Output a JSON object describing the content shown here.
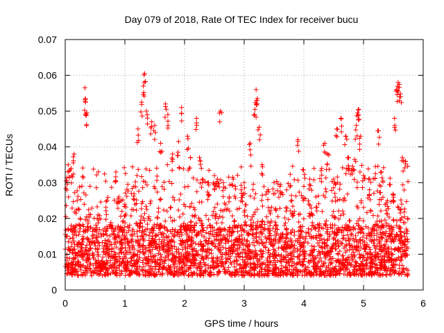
{
  "chart_data": {
    "type": "scatter",
    "title": "Day 079 of 2018, Rate Of TEC Index for receiver bucu",
    "xlabel": "GPS time / hours",
    "ylabel": "ROTI / TECUs",
    "xlim": [
      0,
      6
    ],
    "ylim": [
      0,
      0.07
    ],
    "xticks": [
      0,
      1,
      2,
      3,
      4,
      5,
      6
    ],
    "xtick_labels": [
      "0",
      "1",
      "2",
      "3",
      "4",
      "5",
      "6"
    ],
    "yticks": [
      0,
      0.01,
      0.02,
      0.03,
      0.04,
      0.05,
      0.06,
      0.07
    ],
    "ytick_labels": [
      "0",
      "0.01",
      "0.02",
      "0.03",
      "0.04",
      "0.05",
      "0.06",
      "0.07"
    ],
    "grid": true,
    "legend": "none",
    "marker": "plus",
    "color": "#ff0000",
    "x_range_observed": [
      0.0,
      5.75
    ],
    "series": [
      {
        "points": [
          [
            0.03,
            0.0305
          ],
          [
            0.05,
            0.035
          ],
          [
            0.1,
            0.034
          ],
          [
            0.15,
            0.038
          ],
          [
            0.2,
            0.025
          ],
          [
            0.25,
            0.02
          ],
          [
            0.33,
            0.0565
          ],
          [
            0.34,
            0.0525
          ],
          [
            0.36,
            0.0495
          ],
          [
            0.4,
            0.021
          ],
          [
            0.55,
            0.021
          ],
          [
            0.7,
            0.025
          ],
          [
            0.85,
            0.033
          ],
          [
            0.9,
            0.026
          ],
          [
            1.0,
            0.024
          ],
          [
            1.05,
            0.0295
          ],
          [
            1.15,
            0.029
          ],
          [
            1.22,
            0.045
          ],
          [
            1.28,
            0.0525
          ],
          [
            1.31,
            0.057
          ],
          [
            1.33,
            0.0605
          ],
          [
            1.36,
            0.05
          ],
          [
            1.45,
            0.047
          ],
          [
            1.5,
            0.046
          ],
          [
            1.6,
            0.041
          ],
          [
            1.68,
            0.052
          ],
          [
            1.72,
            0.049
          ],
          [
            1.8,
            0.038
          ],
          [
            1.9,
            0.0415
          ],
          [
            1.95,
            0.051
          ],
          [
            2.05,
            0.043
          ],
          [
            2.1,
            0.037
          ],
          [
            2.2,
            0.048
          ],
          [
            2.25,
            0.037
          ],
          [
            2.3,
            0.031
          ],
          [
            2.4,
            0.03
          ],
          [
            2.5,
            0.032
          ],
          [
            2.55,
            0.031
          ],
          [
            2.6,
            0.05
          ],
          [
            2.65,
            0.03
          ],
          [
            2.75,
            0.026
          ],
          [
            2.85,
            0.029
          ],
          [
            2.95,
            0.028
          ],
          [
            3.0,
            0.03
          ],
          [
            3.1,
            0.041
          ],
          [
            3.18,
            0.0505
          ],
          [
            3.2,
            0.056
          ],
          [
            3.22,
            0.0535
          ],
          [
            3.25,
            0.0455
          ],
          [
            3.3,
            0.035
          ],
          [
            3.4,
            0.028
          ],
          [
            3.5,
            0.03
          ],
          [
            3.6,
            0.029
          ],
          [
            3.7,
            0.023
          ],
          [
            3.8,
            0.025
          ],
          [
            3.9,
            0.042
          ],
          [
            4.0,
            0.029
          ],
          [
            4.1,
            0.031
          ],
          [
            4.2,
            0.026
          ],
          [
            4.3,
            0.034
          ],
          [
            4.35,
            0.041
          ],
          [
            4.4,
            0.038
          ],
          [
            4.5,
            0.031
          ],
          [
            4.55,
            0.045
          ],
          [
            4.62,
            0.048
          ],
          [
            4.7,
            0.043
          ],
          [
            4.75,
            0.037
          ],
          [
            4.8,
            0.0335
          ],
          [
            4.85,
            0.0365
          ],
          [
            4.88,
            0.046
          ],
          [
            4.9,
            0.0495
          ],
          [
            4.92,
            0.0505
          ],
          [
            4.95,
            0.043
          ],
          [
            5.0,
            0.032
          ],
          [
            5.1,
            0.028
          ],
          [
            5.2,
            0.0345
          ],
          [
            5.25,
            0.0445
          ],
          [
            5.3,
            0.033
          ],
          [
            5.4,
            0.025
          ],
          [
            5.5,
            0.0265
          ],
          [
            5.52,
            0.048
          ],
          [
            5.55,
            0.056
          ],
          [
            5.58,
            0.058
          ],
          [
            5.6,
            0.0575
          ],
          [
            5.62,
            0.054
          ],
          [
            5.65,
            0.037
          ],
          [
            5.7,
            0.036
          ],
          [
            5.74,
            0.02
          ]
        ],
        "value_bands": [
          {
            "x_range": [
              0,
              5.75
            ],
            "y_range": [
              0.004,
              0.018
            ],
            "density": "very dense"
          },
          {
            "x_range": [
              0,
              5.75
            ],
            "y_range": [
              0.018,
              0.035
            ],
            "density": "moderate"
          }
        ]
      }
    ]
  }
}
